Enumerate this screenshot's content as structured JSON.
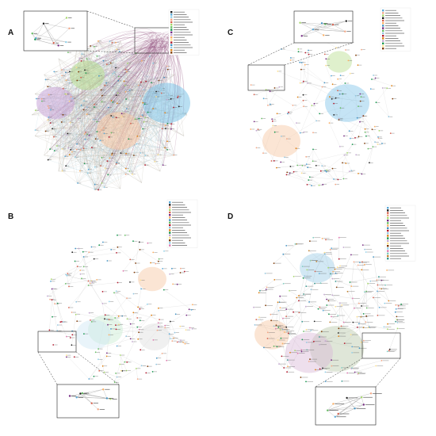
{
  "figure": {
    "panels": [
      {
        "letter": "A",
        "palette": [
          "#1f1f1f",
          "#5aa9d8",
          "#8fd0e8",
          "#f4a582",
          "#d6604d",
          "#a6d96a",
          "#66bd63",
          "#1a9850",
          "#762a83",
          "#c2a5cf",
          "#fdae61",
          "#fee08b",
          "#b2182b",
          "#4393c3",
          "#92c5de",
          "#e08214",
          "#7f3b08"
        ],
        "clusters": [
          {
            "color": "#7fc4e8"
          },
          {
            "color": "#f6c5a0"
          },
          {
            "color": "#c9a6d8"
          },
          {
            "color": "#b7dd8f"
          }
        ],
        "edge_colors": [
          "#8e4a7a",
          "#9fc7d8",
          "#c7b8a6"
        ]
      },
      {
        "letter": "B",
        "palette": [
          "#5aa9d8",
          "#1f1f1f",
          "#f4a582",
          "#a6d96a",
          "#d6604d",
          "#762a83",
          "#fdae61",
          "#4393c3",
          "#66bd63",
          "#b2182b",
          "#92c5de",
          "#e08214",
          "#1a9850",
          "#c2a5cf",
          "#fee08b",
          "#7f3b08",
          "#8fd0e8",
          "#de77ae"
        ],
        "clusters": [
          {
            "color": "#f6c5a0"
          },
          {
            "color": "#c7ecd0"
          },
          {
            "color": "#cfe6f4"
          },
          {
            "color": "#dddddd"
          }
        ],
        "edge_colors": [
          "#c7c7c7"
        ]
      },
      {
        "letter": "C",
        "palette": [
          "#5aa9d8",
          "#f4a582",
          "#a6d96a",
          "#1f1f1f",
          "#d6604d",
          "#fdae61",
          "#4393c3",
          "#762a83",
          "#66bd63",
          "#92c5de",
          "#b2182b",
          "#e08214",
          "#c2a5cf",
          "#1a9850",
          "#fee08b",
          "#7f3b08"
        ],
        "clusters": [
          {
            "color": "#7fc4e8"
          },
          {
            "color": "#f6c5a0"
          },
          {
            "color": "#b7dd8f"
          }
        ],
        "edge_colors": [
          "#cfcfcf"
        ]
      },
      {
        "letter": "D",
        "palette": [
          "#5aa9d8",
          "#1f1f1f",
          "#d6604d",
          "#f4a582",
          "#a6d96a",
          "#762a83",
          "#66bd63",
          "#fdae61",
          "#4393c3",
          "#b2182b",
          "#92c5de",
          "#e08214",
          "#1a9850",
          "#c2a5cf",
          "#fee08b",
          "#7f3b08",
          "#8fd0e8",
          "#de77ae",
          "#80cdc1",
          "#bf812d",
          "#35978f"
        ],
        "clusters": [
          {
            "color": "#9ccbe6"
          },
          {
            "color": "#f6c5a0"
          },
          {
            "color": "#b9c7a8"
          },
          {
            "color": "#d9b9d6"
          }
        ],
        "edge_colors": [
          "#b8b8b8"
        ]
      }
    ]
  }
}
